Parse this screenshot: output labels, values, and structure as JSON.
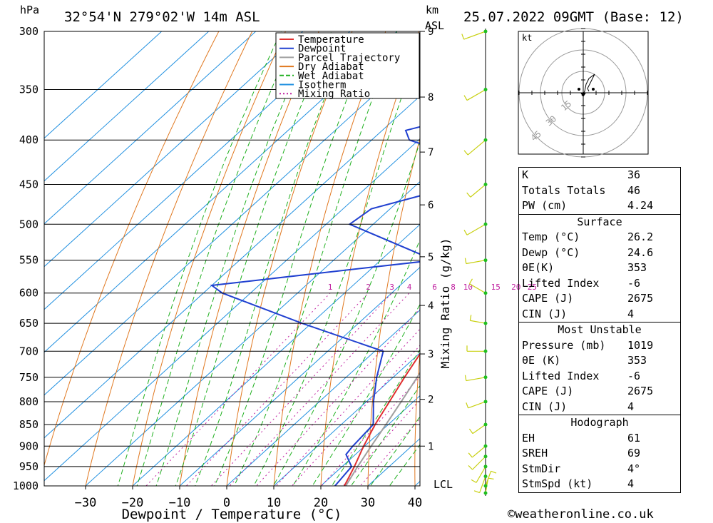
{
  "header": {
    "location": "32°54'N  279°02'W  14m  ASL",
    "datetime": "25.07.2022  09GMT  (Base: 12)",
    "pressure_unit": "hPa",
    "height_unit_line1": "km",
    "height_unit_line2": "ASL"
  },
  "legend": [
    "Temperature",
    "Dewpoint",
    "Parcel Trajectory",
    "Dry Adiabat",
    "Wet Adiabat",
    "Isotherm",
    "Mixing Ratio"
  ],
  "colors": {
    "temperature": "#e03030",
    "dewpoint": "#2040d0",
    "parcel": "#a0a0a0",
    "dry_adiabat": "#e07820",
    "wet_adiabat": "#20b020",
    "isotherm": "#2090e0",
    "mixing_ratio": "#c020a0",
    "wind": "#c8d010",
    "wind_dot": "#20c020"
  },
  "chart_data": {
    "type": "line",
    "title": "Skew-T log-P sounding",
    "xlabel": "Dewpoint / Temperature (°C)",
    "ylabel": "hPa",
    "right_label": "Mixing Ratio (g/kg)",
    "lcl_label": "LCL",
    "x_ticks": [
      -30,
      -20,
      -10,
      0,
      10,
      20,
      30,
      40
    ],
    "pressure_ticks": [
      300,
      350,
      400,
      450,
      500,
      550,
      600,
      650,
      700,
      750,
      800,
      850,
      900,
      950,
      1000
    ],
    "height_ticks": [
      {
        "km": 9,
        "p": 300
      },
      {
        "km": 8,
        "p": 357
      },
      {
        "km": 7,
        "p": 413
      },
      {
        "km": 6,
        "p": 475
      },
      {
        "km": 5,
        "p": 545
      },
      {
        "km": 4,
        "p": 620
      },
      {
        "km": 3,
        "p": 705
      },
      {
        "km": 2,
        "p": 795
      },
      {
        "km": 1,
        "p": 900
      }
    ],
    "mixing_ratio_labels": [
      "1",
      "2",
      "3",
      "4",
      "6",
      "8",
      "10",
      "15",
      "20",
      "25"
    ],
    "series": [
      {
        "name": "Temperature",
        "points": [
          {
            "p": 1019,
            "t": 26.2
          },
          {
            "p": 1000,
            "t": 25.0
          },
          {
            "p": 950,
            "t": 22.6
          },
          {
            "p": 900,
            "t": 19.8
          },
          {
            "p": 850,
            "t": 17.2
          },
          {
            "p": 800,
            "t": 14.9
          },
          {
            "p": 750,
            "t": 12.4
          },
          {
            "p": 700,
            "t": 10.0
          },
          {
            "p": 650,
            "t": 7.4
          },
          {
            "p": 600,
            "t": 4.4
          },
          {
            "p": 550,
            "t": 0.8
          },
          {
            "p": 500,
            "t": -3.5
          },
          {
            "p": 450,
            "t": -8.6
          },
          {
            "p": 420,
            "t": -12.0
          },
          {
            "p": 400,
            "t": -14.6
          },
          {
            "p": 380,
            "t": -17.3
          },
          {
            "p": 350,
            "t": -22.0
          },
          {
            "p": 320,
            "t": -27.0
          },
          {
            "p": 300,
            "t": -30.3
          }
        ]
      },
      {
        "name": "Dewpoint",
        "points": [
          {
            "p": 1019,
            "t": 24.6
          },
          {
            "p": 1000,
            "t": 23.0
          },
          {
            "p": 950,
            "t": 22.0
          },
          {
            "p": 920,
            "t": 18.0
          },
          {
            "p": 900,
            "t": 17.5
          },
          {
            "p": 850,
            "t": 16.8
          },
          {
            "p": 800,
            "t": 11.5
          },
          {
            "p": 750,
            "t": 6.5
          },
          {
            "p": 700,
            "t": 1.8
          },
          {
            "p": 650,
            "t": -22.0
          },
          {
            "p": 600,
            "t": -46.0
          },
          {
            "p": 588,
            "t": -50.0
          },
          {
            "p": 560,
            "t": -20.0
          },
          {
            "p": 550,
            "t": -8.6
          },
          {
            "p": 500,
            "t": -35.0
          },
          {
            "p": 480,
            "t": -34.0
          },
          {
            "p": 460,
            "t": -25.0
          },
          {
            "p": 450,
            "t": -29.0
          },
          {
            "p": 420,
            "t": -26.0
          },
          {
            "p": 400,
            "t": -42.0
          },
          {
            "p": 390,
            "t": -45.0
          },
          {
            "p": 375,
            "t": -36.0
          },
          {
            "p": 350,
            "t": -56.0
          },
          {
            "p": 330,
            "t": -47.0
          },
          {
            "p": 310,
            "t": -64.0
          },
          {
            "p": 300,
            "t": -54.0
          },
          {
            "p": 295,
            "t": -61.0
          }
        ]
      },
      {
        "name": "Parcel Trajectory",
        "points": [
          {
            "p": 1019,
            "t": 26.2
          },
          {
            "p": 1000,
            "t": 25.3
          },
          {
            "p": 950,
            "t": 23.3
          },
          {
            "p": 900,
            "t": 21.4
          },
          {
            "p": 850,
            "t": 19.5
          },
          {
            "p": 800,
            "t": 17.4
          },
          {
            "p": 750,
            "t": 15.1
          },
          {
            "p": 700,
            "t": 12.6
          },
          {
            "p": 650,
            "t": 9.9
          },
          {
            "p": 600,
            "t": 6.9
          },
          {
            "p": 550,
            "t": 3.5
          },
          {
            "p": 500,
            "t": -0.3
          },
          {
            "p": 450,
            "t": -4.8
          },
          {
            "p": 400,
            "t": -10.2
          },
          {
            "p": 370,
            "t": -14.0
          }
        ]
      }
    ],
    "wind_profile": [
      {
        "p": 1019,
        "dir": 10,
        "spd": 4
      },
      {
        "p": 1000,
        "dir": 20,
        "spd": 5
      },
      {
        "p": 975,
        "dir": 200,
        "spd": 8
      },
      {
        "p": 950,
        "dir": 210,
        "spd": 10
      },
      {
        "p": 925,
        "dir": 225,
        "spd": 10
      },
      {
        "p": 900,
        "dir": 230,
        "spd": 8
      },
      {
        "p": 850,
        "dir": 235,
        "spd": 5
      },
      {
        "p": 800,
        "dir": 250,
        "spd": 10
      },
      {
        "p": 750,
        "dir": 260,
        "spd": 12
      },
      {
        "p": 700,
        "dir": 270,
        "spd": 10
      },
      {
        "p": 650,
        "dir": 280,
        "spd": 5
      },
      {
        "p": 600,
        "dir": 300,
        "spd": 10
      },
      {
        "p": 550,
        "dir": 260,
        "spd": 12
      },
      {
        "p": 500,
        "dir": 240,
        "spd": 15
      },
      {
        "p": 450,
        "dir": 230,
        "spd": 12
      },
      {
        "p": 400,
        "dir": 230,
        "spd": 18
      },
      {
        "p": 350,
        "dir": 240,
        "spd": 15
      },
      {
        "p": 300,
        "dir": 250,
        "spd": 18
      }
    ],
    "hodograph": {
      "unit": "kt",
      "ring_labels": [
        "15",
        "30",
        "45"
      ],
      "trace": [
        {
          "u": -1,
          "v": -2
        },
        {
          "u": 1,
          "v": 1
        },
        {
          "u": 2,
          "v": 6
        },
        {
          "u": 4,
          "v": 10
        },
        {
          "u": 8,
          "v": 13
        },
        {
          "u": 5,
          "v": 7
        },
        {
          "u": 3,
          "v": 3
        },
        {
          "u": 4,
          "v": 1
        }
      ]
    }
  },
  "indices": {
    "basic": [
      {
        "label": "K",
        "value": "36"
      },
      {
        "label": "Totals Totals",
        "value": "46"
      },
      {
        "label": "PW (cm)",
        "value": "4.24"
      }
    ],
    "surface_title": "Surface",
    "surface": [
      {
        "label": "Temp (°C)",
        "value": "26.2"
      },
      {
        "label": "Dewp (°C)",
        "value": "24.6"
      },
      {
        "label": "θE(K)",
        "value": "353"
      },
      {
        "label": "Lifted Index",
        "value": "-6"
      },
      {
        "label": "CAPE (J)",
        "value": "2675"
      },
      {
        "label": "CIN (J)",
        "value": "4"
      }
    ],
    "mu_title": "Most Unstable",
    "mu": [
      {
        "label": "Pressure (mb)",
        "value": "1019"
      },
      {
        "label": "θE (K)",
        "value": "353"
      },
      {
        "label": "Lifted Index",
        "value": "-6"
      },
      {
        "label": "CAPE (J)",
        "value": "2675"
      },
      {
        "label": "CIN (J)",
        "value": "4"
      }
    ],
    "hodo_title": "Hodograph",
    "hodo": [
      {
        "label": "EH",
        "value": "61"
      },
      {
        "label": "SREH",
        "value": "69"
      },
      {
        "label": "StmDir",
        "value": "4°"
      },
      {
        "label": "StmSpd (kt)",
        "value": "4"
      }
    ]
  },
  "footer": "©weatheronline.co.uk"
}
